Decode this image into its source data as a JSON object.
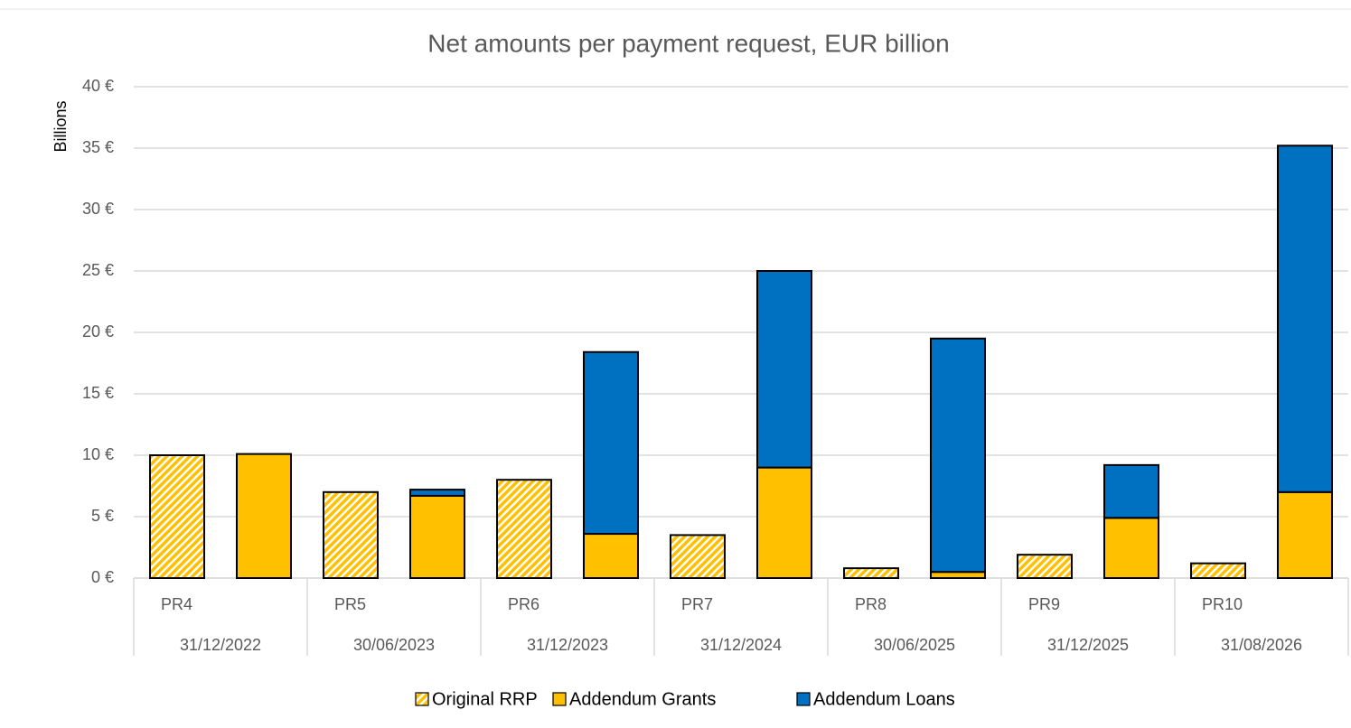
{
  "chart_data": {
    "type": "bar",
    "title": "Net amounts per payment request, EUR billion",
    "y_label": "Billions",
    "categories": [
      "PR4",
      "PR5",
      "PR6",
      "PR7",
      "PR8",
      "PR9",
      "PR10"
    ],
    "dates": [
      "31/12/2022",
      "30/06/2023",
      "31/12/2023",
      "31/12/2024",
      "30/06/2025",
      "31/12/2025",
      "31/08/2026"
    ],
    "series": [
      {
        "name": "Original RRP",
        "color": "#ffc000",
        "hatch": true,
        "values": [
          10,
          7,
          8,
          3.5,
          0.8,
          1.9,
          1.2
        ]
      },
      {
        "name": "Addendum Grants",
        "color": "#ffc000",
        "values": [
          10.1,
          6.7,
          3.6,
          9,
          0.5,
          4.9,
          7
        ]
      },
      {
        "name": "Addendum Loans",
        "color": "#0070c0",
        "values": [
          0,
          0.5,
          14.8,
          16,
          19,
          4.3,
          28.2
        ]
      }
    ],
    "ylim": [
      0,
      40
    ],
    "yticks": [
      {
        "value": 0,
        "label": "0 €"
      },
      {
        "value": 5,
        "label": "5 €"
      },
      {
        "value": 10,
        "label": "10 €"
      },
      {
        "value": 15,
        "label": "15 €"
      },
      {
        "value": 20,
        "label": "20 €"
      },
      {
        "value": 25,
        "label": "25 €"
      },
      {
        "value": 30,
        "label": "30 €"
      },
      {
        "value": 35,
        "label": "35 €"
      },
      {
        "value": 40,
        "label": "40 €"
      }
    ],
    "grid": true
  }
}
